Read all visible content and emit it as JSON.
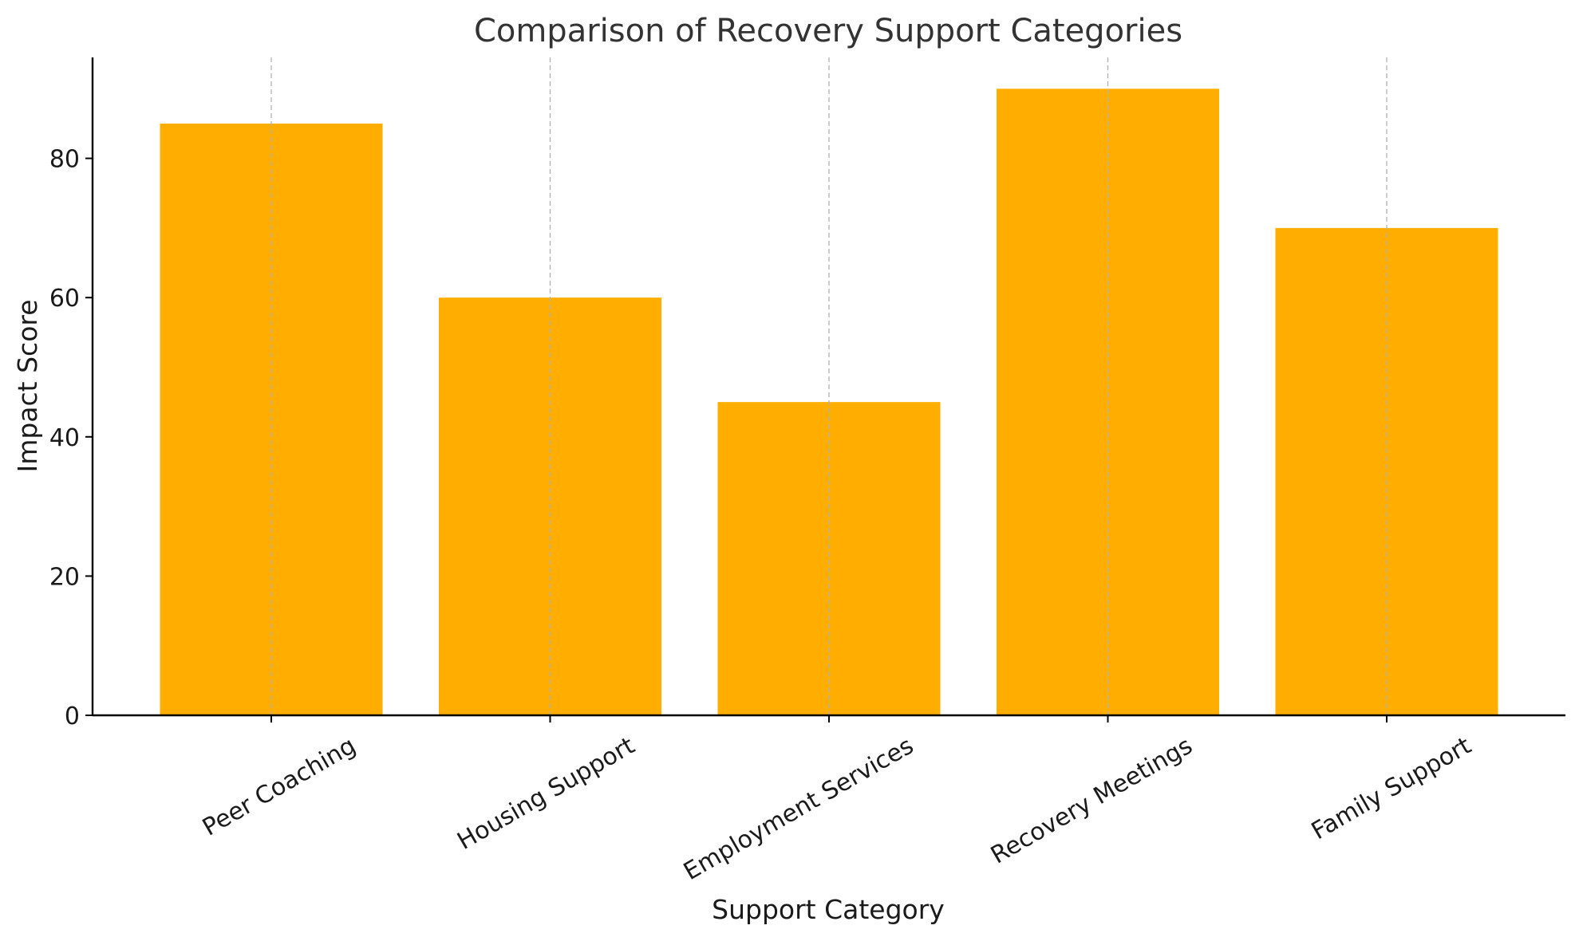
{
  "chart_data": {
    "type": "bar",
    "title": "Comparison of Recovery Support Categories",
    "xlabel": "Support Category",
    "ylabel": "Impact Score",
    "categories": [
      "Peer Coaching",
      "Housing Support",
      "Employment Services",
      "Recovery Meetings",
      "Family Support"
    ],
    "values": [
      85,
      60,
      45,
      90,
      70
    ],
    "ylim": [
      0,
      94.5
    ],
    "yticks": [
      0,
      20,
      40,
      60,
      80
    ],
    "grid": "vertical dashed",
    "bar_color": "#FFAE00"
  }
}
